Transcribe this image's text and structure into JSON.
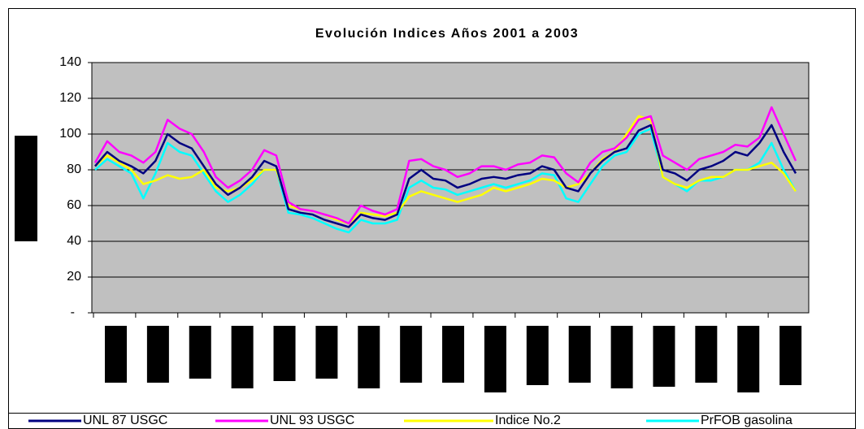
{
  "chart_data": {
    "type": "line",
    "title": "Evolución Indices Años 2001 a 2003",
    "ylim": [
      0,
      140
    ],
    "yticks": [
      {
        "value": 0,
        "label": "-"
      },
      20,
      40,
      60,
      80,
      100,
      120,
      140
    ],
    "grid": true,
    "legend": "bottom",
    "series": [
      {
        "name": "UNL 87 USGC",
        "color": "#000080",
        "values": [
          82,
          90,
          85,
          82,
          78,
          85,
          100,
          95,
          92,
          82,
          72,
          66,
          70,
          76,
          85,
          82,
          58,
          56,
          55,
          52,
          50,
          48,
          55,
          53,
          52,
          55,
          75,
          80,
          75,
          74,
          70,
          72,
          75,
          76,
          75,
          77,
          78,
          82,
          80,
          70,
          68,
          78,
          85,
          90,
          92,
          102,
          105,
          80,
          78,
          74,
          80,
          82,
          85,
          90,
          88,
          95,
          105,
          90,
          78
        ]
      },
      {
        "name": "UNL 93 USGC",
        "color": "#ff00ff",
        "values": [
          84,
          96,
          90,
          88,
          84,
          90,
          108,
          103,
          100,
          90,
          76,
          70,
          74,
          80,
          91,
          88,
          62,
          58,
          57,
          55,
          53,
          50,
          60,
          57,
          55,
          58,
          85,
          86,
          82,
          80,
          76,
          78,
          82,
          82,
          80,
          83,
          84,
          88,
          87,
          78,
          73,
          84,
          90,
          92,
          98,
          108,
          110,
          88,
          84,
          80,
          86,
          88,
          90,
          94,
          93,
          98,
          115,
          100,
          85
        ]
      },
      {
        "name": "Indice No.2",
        "color": "#ffff00",
        "values": [
          82,
          88,
          84,
          80,
          72,
          74,
          77,
          75,
          76,
          80,
          70,
          68,
          70,
          74,
          80,
          80,
          60,
          58,
          57,
          55,
          52,
          50,
          56,
          55,
          54,
          56,
          65,
          68,
          66,
          64,
          62,
          64,
          66,
          70,
          68,
          70,
          72,
          75,
          74,
          70,
          72,
          78,
          86,
          90,
          100,
          110,
          108,
          76,
          72,
          70,
          74,
          76,
          76,
          80,
          80,
          82,
          84,
          78,
          68
        ]
      },
      {
        "name": "PrFOB gasolina",
        "color": "#00ffff",
        "values": [
          80,
          86,
          82,
          78,
          64,
          78,
          95,
          90,
          88,
          78,
          68,
          62,
          66,
          72,
          80,
          80,
          56,
          55,
          53,
          50,
          47,
          45,
          52,
          50,
          50,
          52,
          70,
          74,
          70,
          69,
          66,
          68,
          70,
          72,
          70,
          72,
          74,
          78,
          77,
          64,
          62,
          72,
          82,
          88,
          90,
          100,
          103,
          76,
          72,
          68,
          74,
          74,
          76,
          80,
          80,
          84,
          95,
          80,
          68
        ]
      }
    ]
  }
}
